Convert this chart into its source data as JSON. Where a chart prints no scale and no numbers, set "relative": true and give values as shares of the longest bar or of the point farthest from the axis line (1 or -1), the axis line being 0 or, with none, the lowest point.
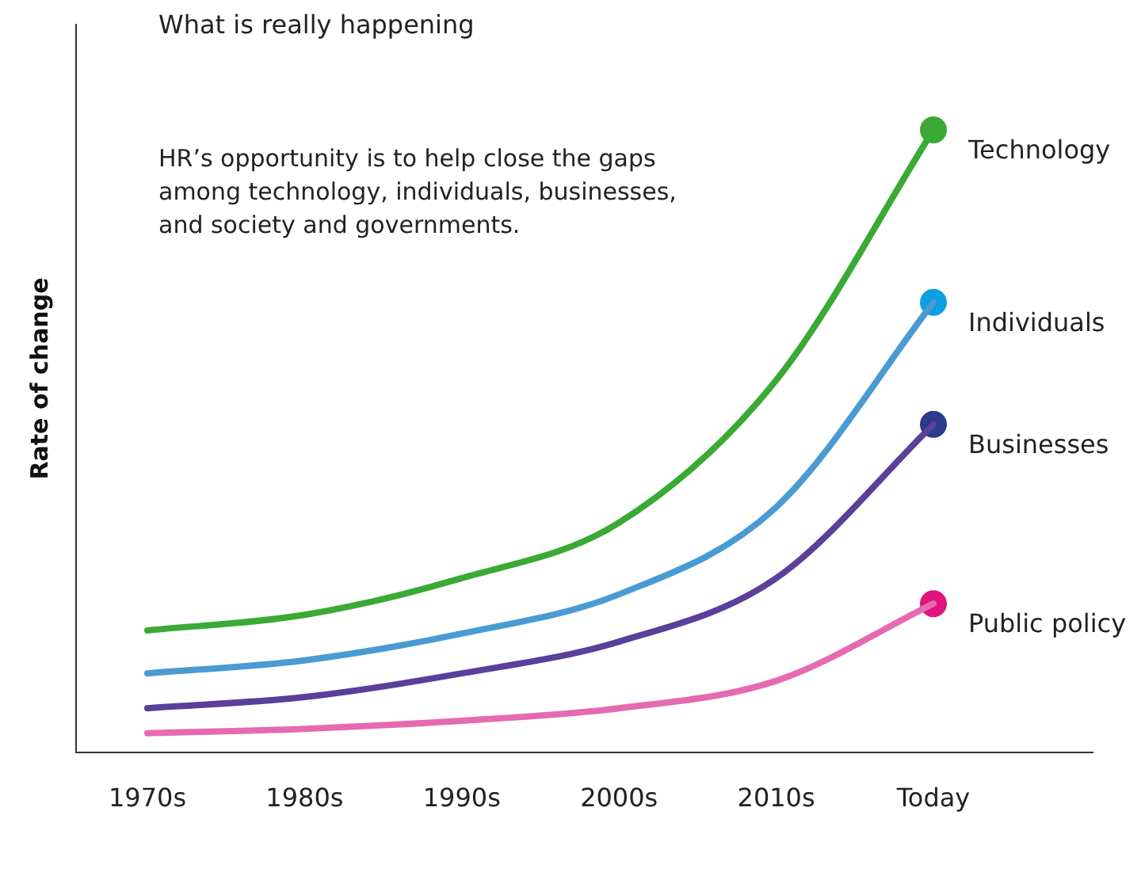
{
  "chart_data": {
    "type": "line",
    "title": "What is really happening",
    "ylabel": "Rate of change",
    "relative": true,
    "legend": false,
    "grid": false,
    "annotations": [
      "HR’s opportunity is to help close the gaps among technology, individuals, businesses, and society and governments."
    ],
    "categories": [
      "1970s",
      "1980s",
      "1990s",
      "2000s",
      "2010s",
      "Today"
    ],
    "series": [
      {
        "name": "Technology",
        "color": "#3aa935",
        "values": [
          0.196,
          0.221,
          0.28,
          0.369,
          0.598,
          1.0
        ]
      },
      {
        "name": "Individuals",
        "color": "#4a9ad4",
        "values": [
          0.127,
          0.148,
          0.191,
          0.254,
          0.394,
          0.723
        ]
      },
      {
        "name": "Businesses",
        "color": "#5b3f9a",
        "values": [
          0.071,
          0.089,
          0.127,
          0.178,
          0.28,
          0.527
        ]
      },
      {
        "name": "Public policy",
        "color": "#e56ab0",
        "values": [
          0.031,
          0.038,
          0.051,
          0.071,
          0.115,
          0.239
        ]
      },
      {
        "type": "scatter",
        "x": [
          "Today"
        ],
        "color": "#3aa935",
        "values": [
          1.0
        ]
      },
      {
        "type": "scatter",
        "x": [
          "Today"
        ],
        "color": "#0aa0e0",
        "values": [
          0.723
        ]
      },
      {
        "type": "scatter",
        "x": [
          "Today"
        ],
        "color": "#2b3a8a",
        "values": [
          0.527
        ]
      },
      {
        "type": "scatter",
        "x": [
          "Today"
        ],
        "color": "#e0157e",
        "values": [
          0.239
        ]
      }
    ]
  }
}
